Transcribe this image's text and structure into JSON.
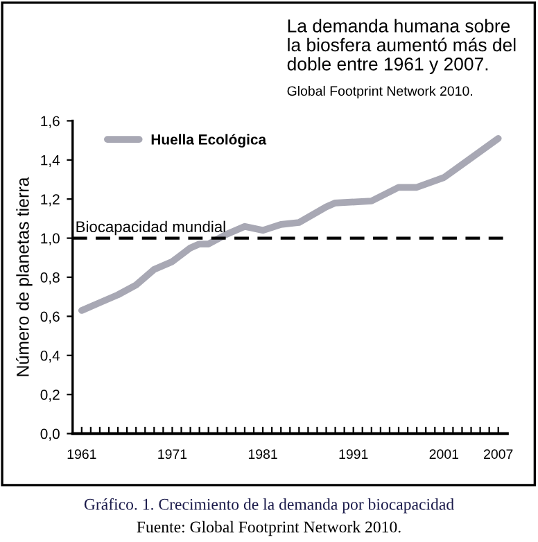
{
  "chart_data": {
    "type": "line",
    "title": "La demanda humana sobre\nla biosfera aumentó más del\ndoble entre 1961 y 2007.",
    "subtitle": "Global Footprint Network 2010.",
    "ylabel": "Número de planetas tierra",
    "x": [
      1961,
      1963,
      1965,
      1967,
      1969,
      1971,
      1973,
      1974,
      1975,
      1977,
      1979,
      1981,
      1983,
      1985,
      1988,
      1989,
      1993,
      1996,
      1998,
      2001,
      2004,
      2007
    ],
    "series": [
      {
        "name": "Huella Ecológica",
        "color": "#a8a8b4",
        "values": [
          0.63,
          0.67,
          0.71,
          0.76,
          0.84,
          0.88,
          0.95,
          0.97,
          0.97,
          1.02,
          1.06,
          1.04,
          1.07,
          1.08,
          1.16,
          1.18,
          1.19,
          1.26,
          1.26,
          1.31,
          1.41,
          1.51
        ]
      }
    ],
    "xlim": [
      1960,
      2008
    ],
    "xticks": [
      1961,
      {
        "value": 1962,
        "label": null
      },
      {
        "value": 1963,
        "label": null
      },
      {
        "value": 1964,
        "label": null
      },
      {
        "value": 1965,
        "label": null
      },
      {
        "value": 1966,
        "label": null
      },
      {
        "value": 1967,
        "label": null
      },
      {
        "value": 1968,
        "label": null
      },
      {
        "value": 1969,
        "label": null
      },
      {
        "value": 1970,
        "label": null
      },
      1971,
      {
        "value": 1972,
        "label": null
      },
      {
        "value": 1973,
        "label": null
      },
      {
        "value": 1974,
        "label": null
      },
      {
        "value": 1975,
        "label": null
      },
      {
        "value": 1976,
        "label": null
      },
      {
        "value": 1977,
        "label": null
      },
      {
        "value": 1978,
        "label": null
      },
      {
        "value": 1979,
        "label": null
      },
      {
        "value": 1980,
        "label": null
      },
      1981,
      {
        "value": 1982,
        "label": null
      },
      {
        "value": 1983,
        "label": null
      },
      {
        "value": 1984,
        "label": null
      },
      {
        "value": 1985,
        "label": null
      },
      {
        "value": 1986,
        "label": null
      },
      {
        "value": 1987,
        "label": null
      },
      {
        "value": 1988,
        "label": null
      },
      {
        "value": 1989,
        "label": null
      },
      {
        "value": 1990,
        "label": null
      },
      1991,
      {
        "value": 1992,
        "label": null
      },
      {
        "value": 1993,
        "label": null
      },
      {
        "value": 1994,
        "label": null
      },
      {
        "value": 1995,
        "label": null
      },
      {
        "value": 1996,
        "label": null
      },
      {
        "value": 1997,
        "label": null
      },
      {
        "value": 1998,
        "label": null
      },
      {
        "value": 1999,
        "label": null
      },
      {
        "value": 2000,
        "label": null
      },
      2001,
      {
        "value": 2002,
        "label": null
      },
      {
        "value": 2003,
        "label": null
      },
      {
        "value": 2004,
        "label": null
      },
      {
        "value": 2005,
        "label": null
      },
      {
        "value": 2006,
        "label": null
      },
      2007
    ],
    "ylim": [
      0,
      1.6
    ],
    "yticks": [
      {
        "value": 0,
        "label": "0,0"
      },
      {
        "value": 0.2,
        "label": "0,2"
      },
      {
        "value": 0.4,
        "label": "0,4"
      },
      {
        "value": 0.6,
        "label": "0,6"
      },
      {
        "value": 0.8,
        "label": "0,8"
      },
      {
        "value": 1.0,
        "label": "1,0"
      },
      {
        "value": 1.2,
        "label": "1,2"
      },
      {
        "value": 1.4,
        "label": "1,4"
      },
      {
        "value": 1.6,
        "label": "1,6"
      }
    ],
    "ref_lines": [
      {
        "axis": "y",
        "value": 1.0,
        "label": "Biocapacidad mundial",
        "color": "#000000",
        "line_style": "dashed"
      }
    ],
    "annotations": [
      "Gráfico. 1. Crecimiento de la demanda por biocapacidad",
      "Fuente: Global Footprint Network 2010."
    ],
    "legend": "top left",
    "grid": false,
    "marker": "none",
    "line_style": "solid"
  }
}
